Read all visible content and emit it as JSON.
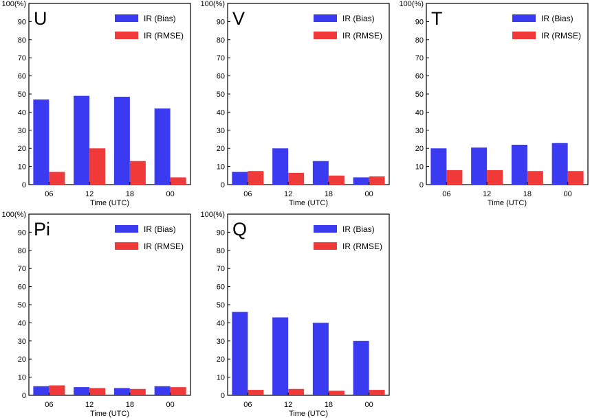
{
  "figure": {
    "colors": {
      "bias": "#3a3af0",
      "rmse": "#f03a3a",
      "axis": "#000000"
    }
  },
  "chart_data": [
    {
      "type": "bar",
      "panel_label": "U",
      "categories": [
        "06",
        "12",
        "18",
        "00"
      ],
      "xlabel": "Time (UTC)",
      "ylim": [
        0,
        100
      ],
      "yticks": [
        "0",
        "10",
        "20",
        "30",
        "40",
        "50",
        "60",
        "70",
        "80",
        "90",
        "100(%)"
      ],
      "legend_position": "top-right",
      "series": [
        {
          "name": "IR (Bias)",
          "values": [
            47,
            49,
            48.5,
            42
          ]
        },
        {
          "name": "IR (RMSE)",
          "values": [
            7,
            20,
            13,
            4
          ]
        }
      ]
    },
    {
      "type": "bar",
      "panel_label": "V",
      "categories": [
        "06",
        "12",
        "18",
        "00"
      ],
      "xlabel": "Time (UTC)",
      "ylim": [
        0,
        100
      ],
      "yticks": [
        "0",
        "10",
        "20",
        "30",
        "40",
        "50",
        "60",
        "70",
        "80",
        "90",
        "100(%)"
      ],
      "legend_position": "top-right",
      "series": [
        {
          "name": "IR (Bias)",
          "values": [
            7,
            20,
            13,
            4
          ]
        },
        {
          "name": "IR (RMSE)",
          "values": [
            7.5,
            6.5,
            5,
            4.5
          ]
        }
      ]
    },
    {
      "type": "bar",
      "panel_label": "T",
      "categories": [
        "06",
        "12",
        "18",
        "00"
      ],
      "xlabel": "Time (UTC)",
      "ylim": [
        0,
        100
      ],
      "yticks": [
        "0",
        "10",
        "20",
        "30",
        "40",
        "50",
        "60",
        "70",
        "80",
        "90",
        "100(%)"
      ],
      "legend_position": "top-right",
      "series": [
        {
          "name": "IR (Bias)",
          "values": [
            20,
            20.5,
            22,
            23
          ]
        },
        {
          "name": "IR (RMSE)",
          "values": [
            8,
            8,
            7.5,
            7.5
          ]
        }
      ]
    },
    {
      "type": "bar",
      "panel_label": "Pi",
      "categories": [
        "06",
        "12",
        "18",
        "00"
      ],
      "xlabel": "Time (UTC)",
      "ylim": [
        0,
        100
      ],
      "yticks": [
        "0",
        "10",
        "20",
        "30",
        "40",
        "50",
        "60",
        "70",
        "80",
        "90",
        "100(%)"
      ],
      "legend_position": "top-right",
      "series": [
        {
          "name": "IR (Bias)",
          "values": [
            5,
            4.5,
            4,
            5
          ]
        },
        {
          "name": "IR (RMSE)",
          "values": [
            5.5,
            4,
            3.5,
            4.5
          ]
        }
      ]
    },
    {
      "type": "bar",
      "panel_label": "Q",
      "categories": [
        "06",
        "12",
        "18",
        "00"
      ],
      "xlabel": "Time (UTC)",
      "ylim": [
        0,
        100
      ],
      "yticks": [
        "0",
        "10",
        "20",
        "30",
        "40",
        "50",
        "60",
        "70",
        "80",
        "90",
        "100(%)"
      ],
      "legend_position": "top-right",
      "series": [
        {
          "name": "IR (Bias)",
          "values": [
            46,
            43,
            40,
            30
          ]
        },
        {
          "name": "IR (RMSE)",
          "values": [
            3,
            3.5,
            2.5,
            3
          ]
        }
      ]
    }
  ]
}
